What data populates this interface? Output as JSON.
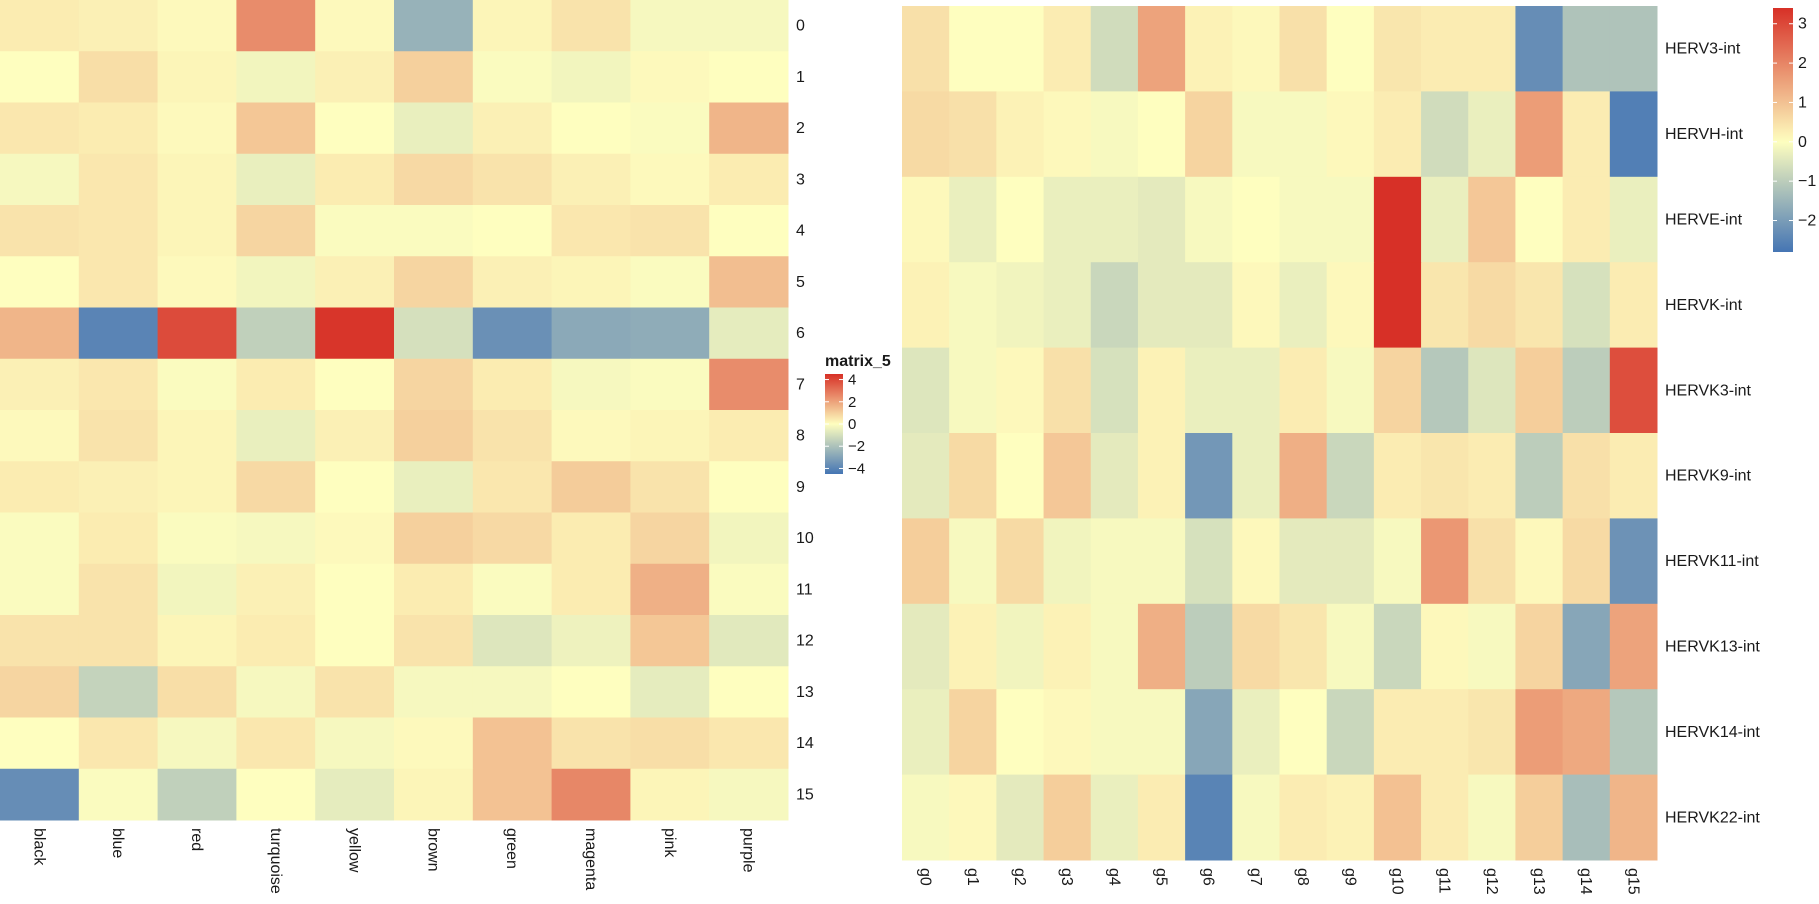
{
  "chart_data": [
    {
      "type": "heatmap",
      "legend_title": "matrix_5",
      "legend_ticks": [
        4,
        2,
        0,
        -2,
        -4
      ],
      "value_range": [
        -4.5,
        4.5
      ],
      "colors": {
        "low": "#4575b4",
        "mid": "#fefebf",
        "high": "#d73027"
      },
      "columns": [
        "black",
        "blue",
        "red",
        "turquoise",
        "yellow",
        "brown",
        "green",
        "magenta",
        "pink",
        "purple"
      ],
      "rows": [
        "0",
        "1",
        "2",
        "3",
        "4",
        "5",
        "6",
        "7",
        "8",
        "9",
        "10",
        "11",
        "12",
        "13",
        "14",
        "15"
      ],
      "values": [
        [
          0.4,
          0.3,
          0.1,
          2.5,
          0.1,
          -2.5,
          0.2,
          0.6,
          -0.2,
          -0.2
        ],
        [
          0.0,
          0.7,
          0.2,
          -0.3,
          0.3,
          1.0,
          -0.1,
          -0.3,
          0.1,
          0.0
        ],
        [
          0.5,
          0.4,
          0.1,
          1.2,
          0.0,
          -0.5,
          0.3,
          0.0,
          -0.1,
          1.6
        ],
        [
          -0.2,
          0.5,
          0.2,
          -0.5,
          0.4,
          0.8,
          0.6,
          0.3,
          0.1,
          0.4
        ],
        [
          0.6,
          0.5,
          0.2,
          0.9,
          -0.1,
          -0.1,
          0.0,
          0.5,
          0.6,
          0.0
        ],
        [
          0.0,
          0.5,
          0.1,
          -0.3,
          0.3,
          0.9,
          0.3,
          0.2,
          -0.1,
          1.4
        ],
        [
          1.6,
          -4.0,
          3.9,
          -1.5,
          4.4,
          -1.0,
          -3.6,
          -2.8,
          -2.7,
          -0.6
        ],
        [
          0.3,
          0.5,
          -0.1,
          0.4,
          0.0,
          0.9,
          0.4,
          -0.2,
          -0.1,
          2.5
        ],
        [
          0.1,
          0.6,
          0.2,
          -0.5,
          0.3,
          1.0,
          0.6,
          0.1,
          0.2,
          0.4
        ],
        [
          0.4,
          0.3,
          0.2,
          0.8,
          0.0,
          -0.5,
          0.5,
          1.1,
          0.6,
          0.0
        ],
        [
          -0.1,
          0.4,
          -0.1,
          -0.2,
          0.1,
          1.0,
          0.8,
          0.4,
          0.9,
          -0.3
        ],
        [
          -0.1,
          0.6,
          -0.3,
          0.3,
          0.0,
          0.4,
          -0.1,
          0.4,
          1.7,
          -0.1
        ],
        [
          0.6,
          0.6,
          0.2,
          0.4,
          0.0,
          0.6,
          -0.8,
          -0.4,
          1.2,
          -0.7
        ],
        [
          0.9,
          -1.4,
          0.7,
          -0.2,
          0.6,
          -0.2,
          -0.2,
          0.0,
          -0.6,
          0.0
        ],
        [
          0.0,
          0.5,
          -0.2,
          0.5,
          -0.2,
          0.1,
          1.3,
          0.6,
          0.7,
          0.5
        ],
        [
          -3.7,
          -0.1,
          -1.5,
          0.0,
          -0.6,
          0.2,
          1.3,
          2.6,
          0.2,
          -0.2
        ]
      ]
    },
    {
      "type": "heatmap",
      "legend_title": "",
      "legend_ticks": [
        3,
        2,
        1,
        0,
        -1,
        -2
      ],
      "value_range": [
        -2.8,
        3.4
      ],
      "colors": {
        "low": "#4575b4",
        "mid": "#fefebf",
        "high": "#d73027"
      },
      "columns": [
        "g0",
        "g1",
        "g2",
        "g3",
        "g4",
        "g5",
        "g6",
        "g7",
        "g8",
        "g9",
        "g10",
        "g11",
        "g12",
        "g13",
        "g14",
        "g15"
      ],
      "rows": [
        "HERV3-int",
        "HERVH-int",
        "HERVE-int",
        "HERVK-int",
        "HERVK3-int",
        "HERVK9-int",
        "HERVK11-int",
        "HERVK13-int",
        "HERVK14-int",
        "HERVK22-int"
      ],
      "values": [
        [
          0.5,
          0.0,
          0.0,
          0.3,
          -0.7,
          1.5,
          0.2,
          0.1,
          0.5,
          0.0,
          0.4,
          0.3,
          0.3,
          -2.3,
          -1.2,
          -1.2
        ],
        [
          0.6,
          0.5,
          0.2,
          0.1,
          -0.1,
          0.0,
          0.7,
          -0.1,
          -0.1,
          0.1,
          0.3,
          -0.7,
          -0.3,
          1.6,
          0.3,
          -2.6
        ],
        [
          0.1,
          -0.3,
          0.0,
          -0.3,
          -0.3,
          -0.4,
          -0.1,
          0.0,
          -0.1,
          -0.1,
          3.4,
          -0.3,
          0.9,
          0.0,
          0.3,
          -0.3
        ],
        [
          0.2,
          -0.1,
          -0.2,
          -0.3,
          -0.8,
          -0.4,
          -0.4,
          0.1,
          -0.3,
          0.1,
          3.4,
          0.4,
          0.6,
          0.4,
          -0.6,
          0.3
        ],
        [
          -0.5,
          -0.1,
          0.1,
          0.5,
          -0.6,
          0.2,
          -0.3,
          -0.3,
          0.3,
          -0.1,
          0.7,
          -1.1,
          -0.5,
          0.8,
          -1.0,
          2.9
        ],
        [
          -0.4,
          0.6,
          0.0,
          0.9,
          -0.4,
          0.2,
          -2.1,
          -0.3,
          1.3,
          -0.8,
          0.3,
          0.4,
          0.3,
          -1.0,
          0.5,
          0.3
        ],
        [
          0.8,
          -0.1,
          0.6,
          -0.2,
          -0.1,
          -0.1,
          -0.6,
          0.1,
          -0.4,
          -0.4,
          -0.1,
          1.7,
          0.5,
          0.1,
          0.6,
          -2.2
        ],
        [
          -0.4,
          0.2,
          -0.2,
          0.2,
          -0.1,
          1.3,
          -1.0,
          0.6,
          0.4,
          -0.1,
          -0.8,
          0.1,
          -0.1,
          0.7,
          -1.8,
          1.5
        ],
        [
          -0.3,
          0.7,
          0.0,
          0.1,
          -0.1,
          -0.1,
          -1.8,
          -0.3,
          0.0,
          -0.8,
          0.3,
          0.3,
          0.4,
          1.6,
          1.4,
          -1.1
        ],
        [
          -0.1,
          0.1,
          -0.4,
          0.8,
          -0.3,
          0.3,
          -2.5,
          -0.1,
          0.3,
          0.2,
          1.0,
          0.3,
          -0.1,
          0.8,
          -1.3,
          1.2
        ]
      ]
    }
  ]
}
